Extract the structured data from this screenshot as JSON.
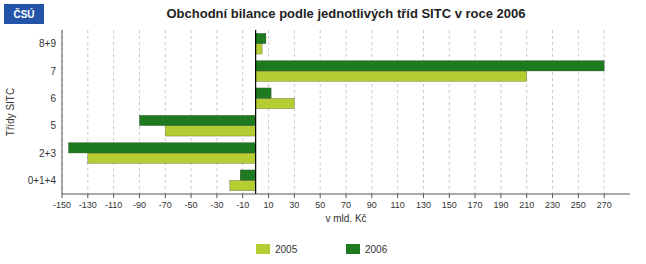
{
  "chart_data": {
    "type": "bar",
    "orientation": "horizontal",
    "title": "Obchodní bilance podle jednotlivých tříd SITC v roce 2006",
    "x_label": "v mld. Kč",
    "y_label": "Třídy SITC",
    "annotations": [
      "ČSÚ"
    ],
    "categories": [
      "8+9",
      "7",
      "6",
      "5",
      "2+3",
      "0+1+4"
    ],
    "series": [
      {
        "name": "2005",
        "color": "#b5cc33",
        "values": [
          5,
          210,
          30,
          -70,
          -130,
          -20
        ]
      },
      {
        "name": "2006",
        "color": "#1e7a1e",
        "values": [
          8,
          270,
          12,
          -90,
          -145,
          -12
        ]
      }
    ],
    "xlim": [
      -150,
      290
    ],
    "xticks": [
      -150,
      -130,
      -110,
      -90,
      -70,
      -50,
      -30,
      -10,
      10,
      30,
      50,
      70,
      90,
      110,
      130,
      150,
      170,
      190,
      210,
      230,
      250,
      270
    ],
    "grid": true,
    "legend": "bottom"
  }
}
